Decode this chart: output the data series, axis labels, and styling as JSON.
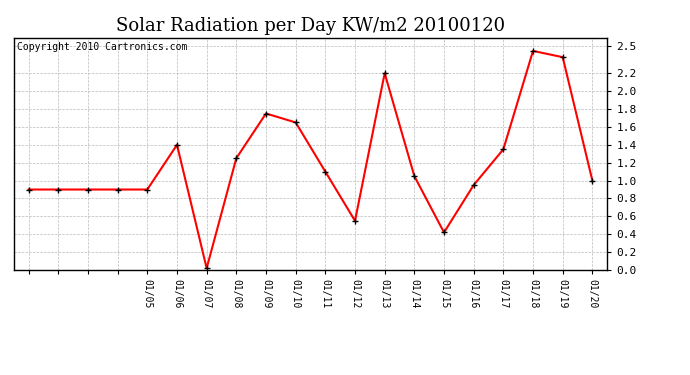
{
  "title": "Solar Radiation per Day KW/m2 20100120",
  "copyright": "Copyright 2010 Cartronics.com",
  "x_labels_all": [
    "",
    "",
    "",
    "",
    "01/05",
    "01/06",
    "01/07",
    "01/08",
    "01/09",
    "01/10",
    "01/11",
    "01/12",
    "01/13",
    "01/14",
    "01/15",
    "01/16",
    "01/17",
    "01/18",
    "01/19",
    "01/20"
  ],
  "y_values": [
    0.9,
    0.9,
    0.9,
    0.9,
    0.9,
    1.4,
    0.02,
    1.25,
    1.75,
    1.65,
    1.1,
    0.55,
    2.2,
    1.05,
    0.42,
    0.95,
    1.35,
    2.45,
    2.38,
    1.0
  ],
  "ylim": [
    0.0,
    2.6
  ],
  "yticks": [
    0.0,
    0.2,
    0.4,
    0.6,
    0.8,
    1.0,
    1.2,
    1.4,
    1.6,
    1.8,
    2.0,
    2.2,
    2.5
  ],
  "ytick_labels": [
    "0.0",
    "0.2",
    "0.4",
    "0.6",
    "0.8",
    "1.0",
    "1.2",
    "1.4",
    "1.6",
    "1.8",
    "2.0",
    "2.2",
    "2.5"
  ],
  "line_color": "red",
  "marker": "+",
  "marker_color": "black",
  "bg_color": "#ffffff",
  "grid_color": "#bbbbbb",
  "title_fontsize": 13,
  "copyright_fontsize": 7
}
